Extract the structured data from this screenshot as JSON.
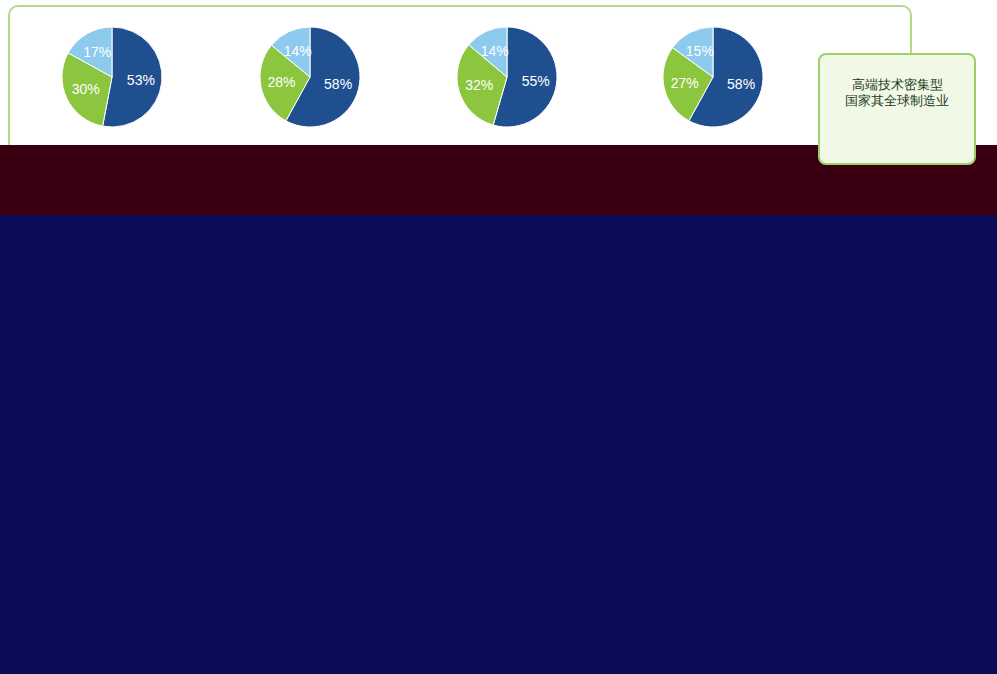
{
  "chart_data": [
    {
      "type": "pie",
      "values": [
        53,
        30,
        17
      ],
      "value_labels": [
        "53%",
        "30%",
        "17%"
      ],
      "colors": [
        "#1f4f8f",
        "#8cc63e",
        "#8ccbee"
      ],
      "data_labels": true
    },
    {
      "type": "pie",
      "values": [
        58,
        28,
        14
      ],
      "value_labels": [
        "58%",
        "28%",
        "14%"
      ],
      "colors": [
        "#1f4f8f",
        "#8cc63e",
        "#8ccbee"
      ],
      "data_labels": true
    },
    {
      "type": "pie",
      "values": [
        55,
        32,
        14
      ],
      "value_labels": [
        "55%",
        "32%",
        "14%"
      ],
      "colors": [
        "#1f4f8f",
        "#8cc63e",
        "#8ccbee"
      ],
      "data_labels": true
    },
    {
      "type": "pie",
      "values": [
        58,
        27,
        15
      ],
      "value_labels": [
        "58%",
        "27%",
        "15%"
      ],
      "colors": [
        "#1f4f8f",
        "#8cc63e",
        "#8ccbee"
      ],
      "data_labels": true
    }
  ],
  "note": {
    "lines": [
      "高端技术密集型",
      "国家其全球制造业"
    ]
  }
}
